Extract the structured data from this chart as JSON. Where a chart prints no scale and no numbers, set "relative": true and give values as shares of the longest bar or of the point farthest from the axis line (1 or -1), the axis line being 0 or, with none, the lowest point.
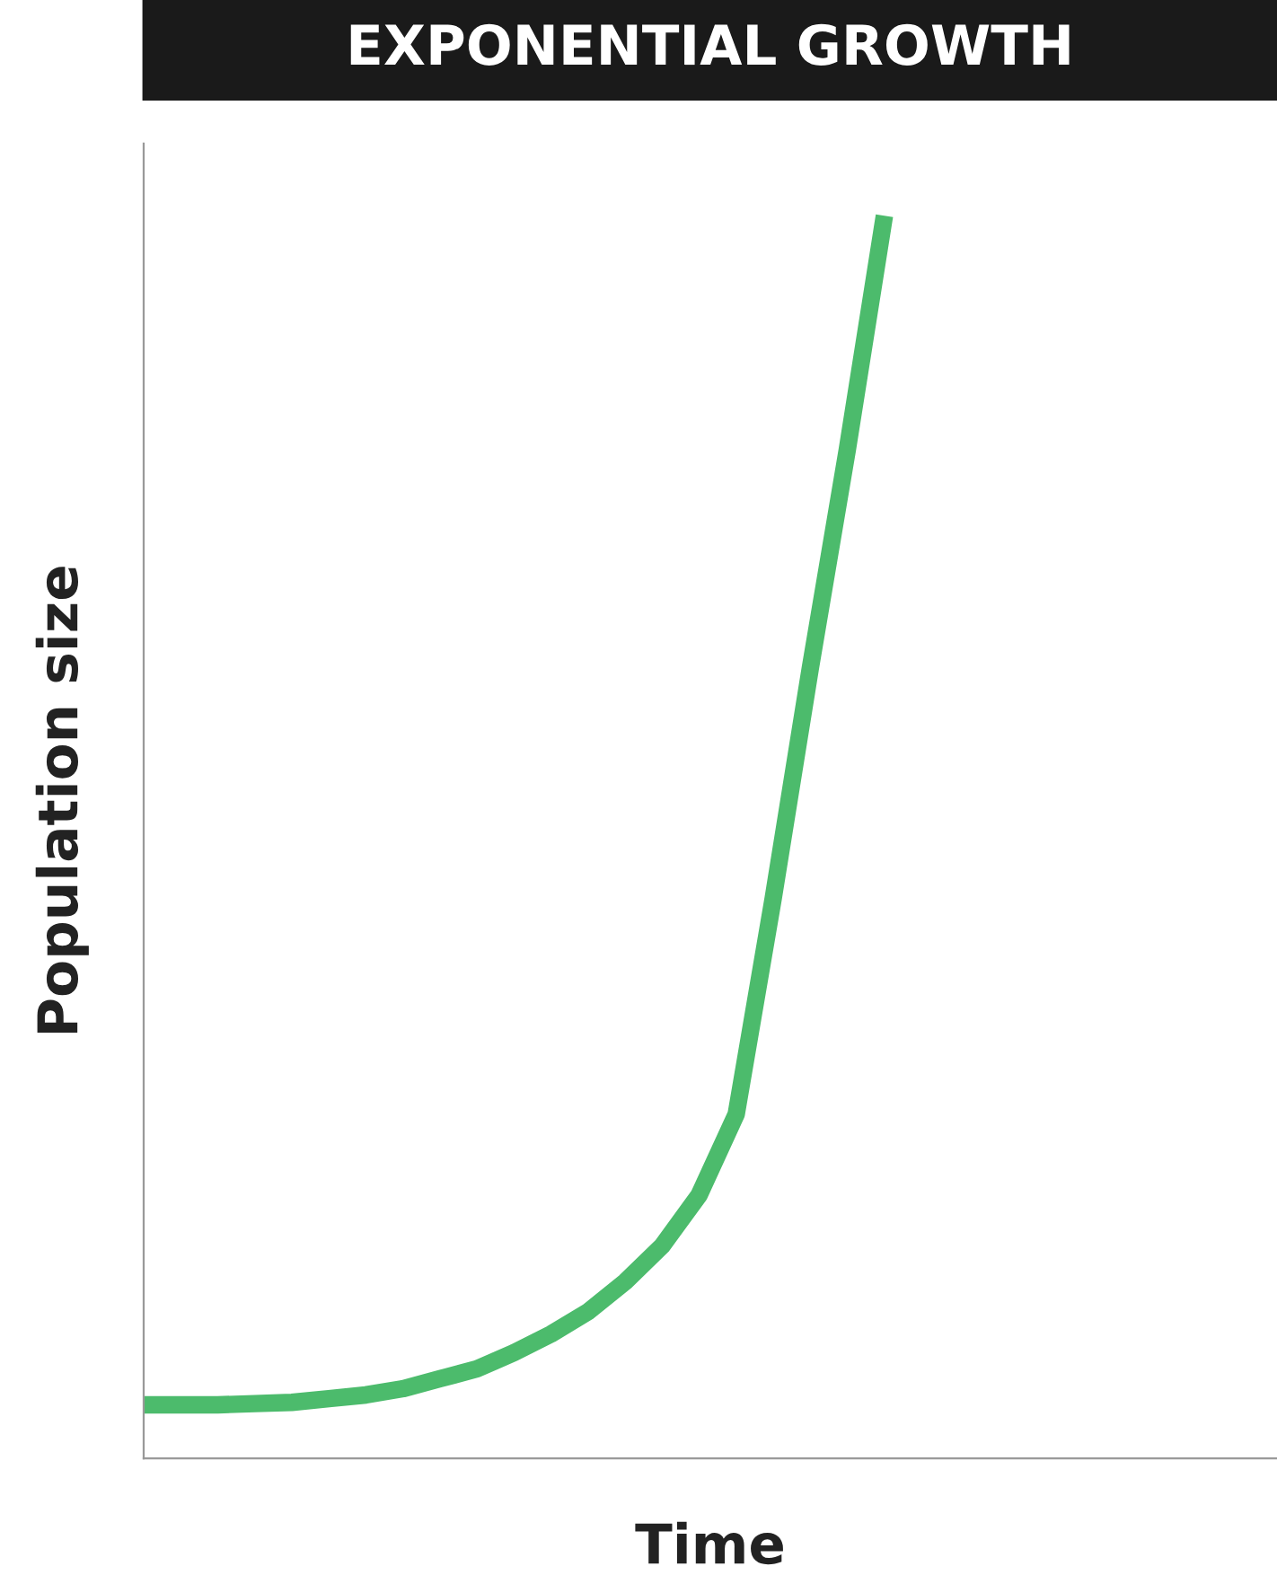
{
  "chart_data": {
    "type": "line",
    "title": "EXPONENTIAL GROWTH",
    "xlabel": "Time",
    "ylabel": "Population size",
    "relative": true,
    "categories": [
      null,
      null,
      null,
      null,
      null,
      null,
      null,
      null,
      null,
      null,
      null,
      null,
      null,
      null,
      null,
      null,
      null,
      null,
      null,
      null,
      null,
      null,
      null,
      null,
      null,
      null,
      null,
      null,
      null,
      null,
      null
    ],
    "series": [
      {
        "color": "#4cbb6c",
        "values": [
          0.043,
          0.043,
          0.043,
          0.044,
          0.045,
          0.048,
          0.051,
          0.056,
          0.064,
          0.072,
          0.085,
          0.1,
          0.118,
          0.142,
          0.171,
          0.212,
          0.277,
          0.451,
          0.636,
          0.812,
          1.0,
          null,
          null,
          null,
          null,
          null,
          null,
          null,
          null,
          null,
          null
        ]
      }
    ],
    "grid": false,
    "legend": false,
    "marker": "none",
    "line_style": "solid"
  }
}
